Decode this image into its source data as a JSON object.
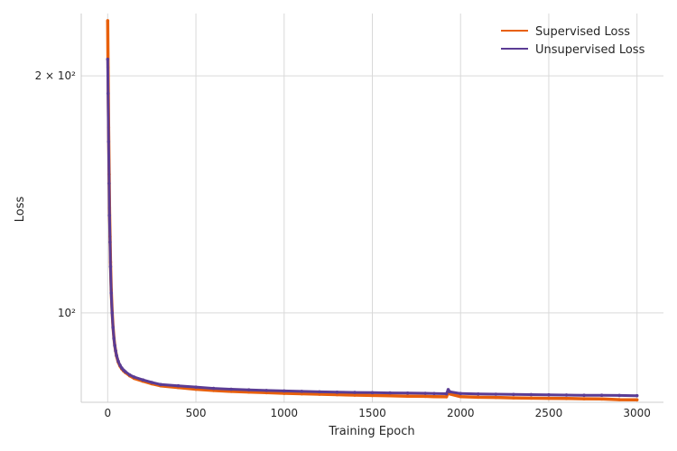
{
  "chart_data": {
    "type": "line",
    "title": "",
    "xlabel": "Training Epoch",
    "ylabel": "Loss",
    "xlim": [
      -150,
      3150
    ],
    "ylim": [
      77,
      240
    ],
    "yscale": "log",
    "grid": true,
    "legend_position": "top-right",
    "x_ticks": [
      0,
      500,
      1000,
      1500,
      2000,
      2500,
      3000
    ],
    "x_tick_labels": [
      "0",
      "500",
      "1000",
      "1500",
      "2000",
      "2500",
      "3000"
    ],
    "y_ticks": [
      100,
      200
    ],
    "y_tick_labels": [
      "10²",
      "2 × 10²"
    ],
    "series": [
      {
        "name": "Supervised Loss",
        "color": "#e8600c",
        "x": [
          0,
          2,
          5,
          8,
          10,
          13,
          16,
          20,
          25,
          30,
          35,
          40,
          45,
          50,
          60,
          70,
          80,
          90,
          100,
          125,
          150,
          200,
          250,
          300,
          400,
          500,
          600,
          700,
          800,
          900,
          1000,
          1100,
          1200,
          1300,
          1400,
          1500,
          1600,
          1700,
          1800,
          1850,
          1920,
          1930,
          1940,
          2000,
          2100,
          2200,
          2300,
          2400,
          2500,
          2600,
          2700,
          2800,
          2900,
          3000
        ],
        "y": [
          235,
          205,
          172,
          150,
          136,
          125,
          116,
          107,
          100.5,
          96,
          93,
          91,
          89.5,
          88.2,
          86.6,
          85.6,
          84.9,
          84.4,
          84.0,
          83.2,
          82.6,
          81.9,
          81.3,
          80.8,
          80.4,
          80.0,
          79.7,
          79.5,
          79.35,
          79.2,
          79.05,
          78.95,
          78.85,
          78.75,
          78.65,
          78.55,
          78.5,
          78.4,
          78.35,
          78.3,
          78.25,
          79.4,
          78.9,
          78.3,
          78.15,
          78.1,
          78.0,
          77.95,
          77.9,
          77.85,
          77.8,
          77.75,
          77.6,
          77.55
        ]
      },
      {
        "name": "Unsupervised Loss",
        "color": "#5b3c94",
        "x": [
          0,
          2,
          5,
          8,
          10,
          13,
          16,
          20,
          25,
          30,
          35,
          40,
          45,
          50,
          60,
          70,
          80,
          90,
          100,
          125,
          150,
          200,
          250,
          300,
          400,
          500,
          600,
          700,
          800,
          900,
          1000,
          1100,
          1200,
          1300,
          1400,
          1500,
          1600,
          1700,
          1800,
          1850,
          1920,
          1930,
          1940,
          2000,
          2100,
          2200,
          2300,
          2400,
          2500,
          2600,
          2700,
          2800,
          2900,
          3000
        ],
        "y": [
          210,
          190,
          165,
          146,
          133,
          123,
          114.5,
          106,
          100,
          95.8,
          92.8,
          90.9,
          89.5,
          88.3,
          86.8,
          85.8,
          85.1,
          84.6,
          84.2,
          83.4,
          82.9,
          82.2,
          81.6,
          81.1,
          80.8,
          80.5,
          80.2,
          80.0,
          79.85,
          79.7,
          79.6,
          79.5,
          79.4,
          79.3,
          79.25,
          79.2,
          79.15,
          79.1,
          79.05,
          79.0,
          78.95,
          79.9,
          79.4,
          79.0,
          78.9,
          78.85,
          78.8,
          78.75,
          78.7,
          78.65,
          78.6,
          78.6,
          78.55,
          78.5
        ]
      }
    ]
  }
}
